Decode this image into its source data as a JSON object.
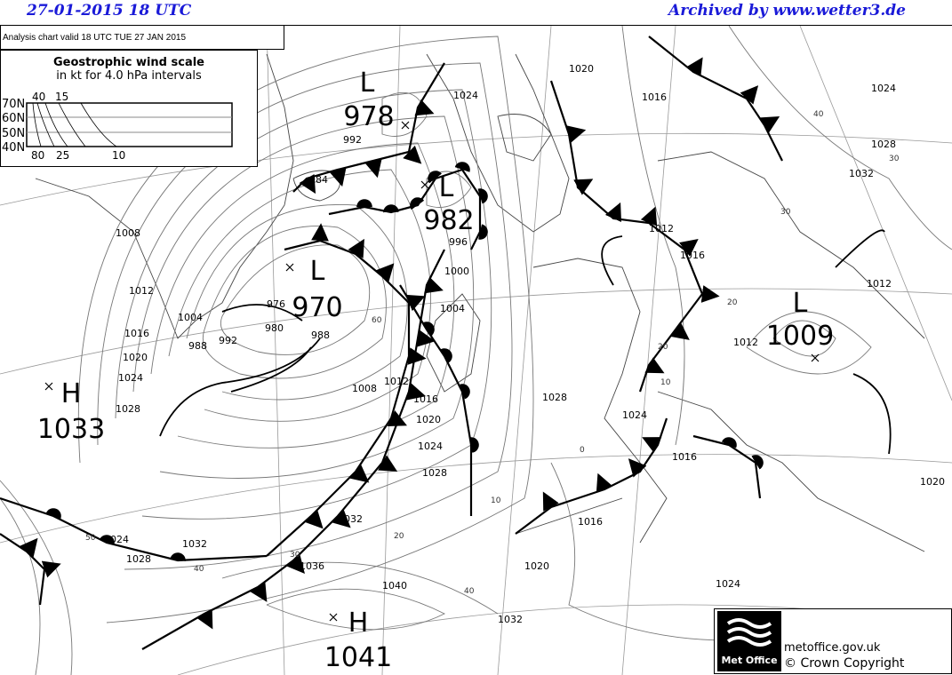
{
  "header": {
    "date": "27-01-2015  18 UTC",
    "archive": "Archived by www.wetter3.de"
  },
  "valid_text": "Analysis chart  valid 18 UTC TUE 27  JAN 2015",
  "wind_scale": {
    "title": "Geostrophic wind scale",
    "subtitle": "in kt for 4.0 hPa intervals",
    "lat_labels": [
      "70N",
      "60N",
      "50N",
      "40N"
    ],
    "top_labels": [
      "40",
      "15"
    ],
    "bottom_labels": [
      "80",
      "25",
      "10"
    ]
  },
  "pressure_centres": [
    {
      "type": "L",
      "value": "978"
    },
    {
      "type": "L",
      "value": "982"
    },
    {
      "type": "L",
      "value": "970"
    },
    {
      "type": "H",
      "value": "1033"
    },
    {
      "type": "L",
      "value": "1009"
    },
    {
      "type": "H",
      "value": "1041"
    }
  ],
  "isobar_labels": [
    "992",
    "984",
    "1008",
    "1012",
    "1016",
    "1020",
    "1024",
    "1028",
    "1004",
    "988",
    "976",
    "980",
    "992",
    "988",
    "1008",
    "996",
    "1000",
    "1004",
    "1012",
    "1016",
    "1020",
    "1024",
    "1028",
    "1032",
    "1036",
    "1040",
    "1032",
    "1028",
    "1024",
    "1016",
    "1024",
    "1028",
    "1032",
    "1024",
    "1020",
    "1016",
    "1016",
    "1012",
    "1012",
    "1024",
    "1020",
    "1016",
    "1012",
    "1024",
    "1028",
    "1020",
    "1032"
  ],
  "wind_labels": [
    "60",
    "20",
    "30",
    "10",
    "20",
    "0",
    "10",
    "40",
    "30",
    "40",
    "50",
    "40",
    "20",
    "30"
  ],
  "logo": {
    "brand": "Met Office",
    "url": "metoffice.gov.uk",
    "copyright": "© Crown Copyright"
  }
}
